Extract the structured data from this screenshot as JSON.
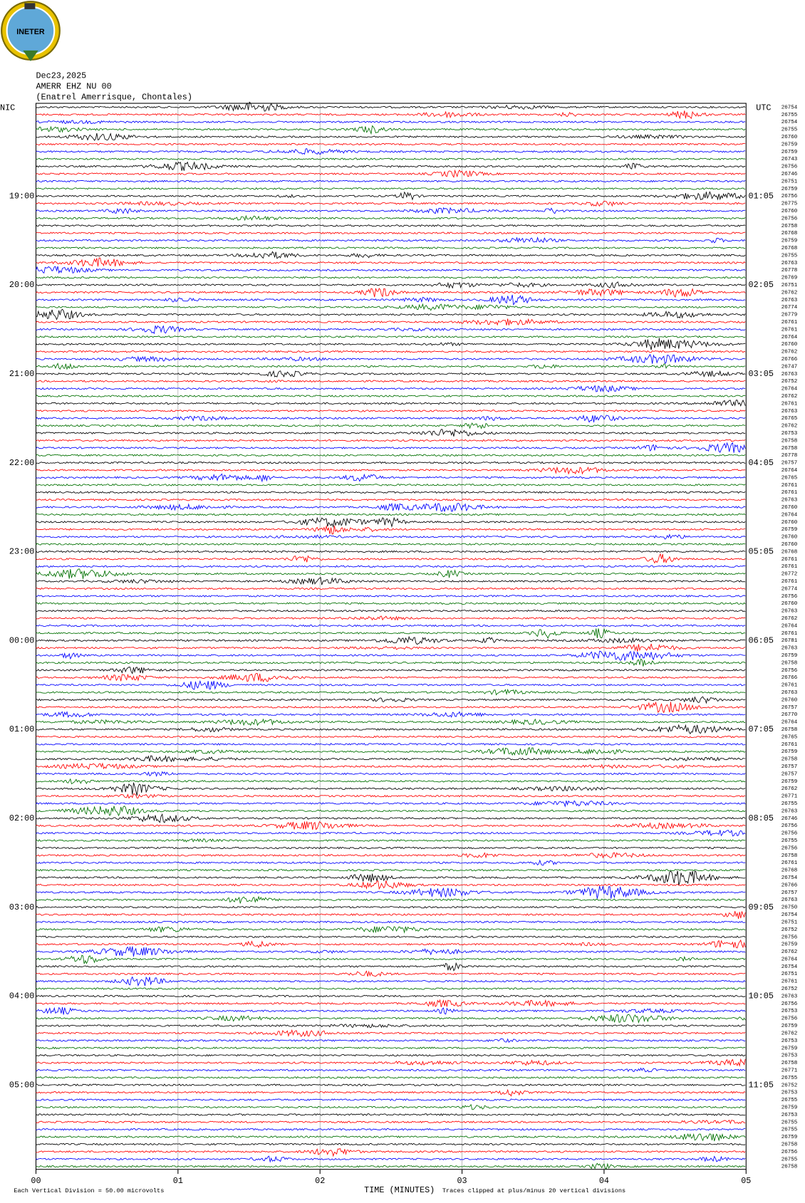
{
  "header": {
    "logo": "INETER",
    "date": "Dec23,2025",
    "station": "AMERR EHZ NU 00",
    "location": "(Enatrel Amerrisque, Chontales)",
    "left_title": "NIC",
    "right_title": "UTC"
  },
  "hours_left": [
    "19:00",
    "20:00",
    "21:00",
    "22:00",
    "23:00",
    "00:00",
    "01:00",
    "02:00",
    "03:00",
    "04:00",
    "05:00"
  ],
  "hours_right": [
    "01:05",
    "02:05",
    "03:05",
    "04:05",
    "05:05",
    "06:05",
    "07:05",
    "08:05",
    "09:05",
    "10:05",
    "11:05"
  ],
  "x_ticks": [
    "00",
    "01",
    "02",
    "03",
    "04",
    "05"
  ],
  "trace_counts": [
    26754,
    26755,
    26754,
    26755,
    26760,
    26759,
    26759,
    26743,
    26756,
    26746,
    26751,
    26759,
    26756,
    26775,
    26760,
    26756,
    26758,
    26768,
    26759,
    26768,
    26755,
    26763,
    26778,
    26769,
    26751,
    26762,
    26763,
    26774,
    26779,
    26761,
    26761,
    26764,
    26760,
    26762,
    26766,
    26747,
    26763,
    26752,
    26764,
    26762,
    26761,
    26763,
    26765,
    26762,
    26753,
    26758,
    26758,
    26778,
    26757,
    26764,
    26765,
    26761,
    26761,
    26763,
    26760,
    26764,
    26760,
    26759,
    26760,
    26760,
    26768,
    26761,
    26761,
    26772,
    26761,
    26774,
    26756,
    26760,
    26763,
    26762,
    26764,
    26761,
    26781,
    26763,
    26759,
    26758,
    26756,
    26766,
    26761,
    26763,
    26760,
    26757,
    26770,
    26764,
    26758,
    26765,
    26761,
    26759,
    26758,
    26757,
    26757,
    26759,
    26762,
    26771,
    26755,
    26763,
    26746,
    26756,
    26756,
    26755,
    26756,
    26758,
    26761,
    26768,
    26754,
    26766,
    26757,
    26763,
    26750,
    26754,
    26751,
    26752,
    26756,
    26759,
    26762,
    26764,
    26754,
    26751,
    26761,
    26752,
    26763,
    26756,
    26753,
    26756,
    26759,
    26762,
    26753,
    26759,
    26753,
    26758,
    26771,
    26755,
    26752,
    26753,
    26755,
    26759,
    26753,
    26755,
    26755,
    26759,
    26758,
    26756,
    26755,
    26758
  ],
  "footer": {
    "scale": "Each Vertical Division =   50.00 microvolts",
    "axis_title": "TIME (MINUTES)",
    "clip_note": "Traces clipped at plus/minus 20 vertical divisions"
  }
}
